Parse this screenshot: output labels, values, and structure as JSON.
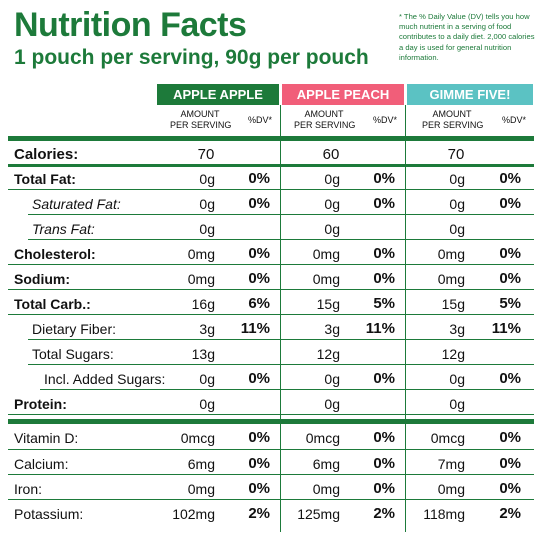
{
  "header": {
    "title": "Nutrition Facts",
    "subtitle": "1 pouch per serving, 90g per pouch",
    "footnote": "* The % Daily Value (DV) tells you how much nutrient in a serving of food contributes to a daily diet. 2,000 calories a day is used for general nutrition information."
  },
  "colors": {
    "green": "#1d7a3a",
    "pink": "#f15e79",
    "teal": "#5bc2c3"
  },
  "products": [
    {
      "name": "APPLE APPLE",
      "amount_header": "AMOUNT\nPER SERVING",
      "dv_header": "%DV*"
    },
    {
      "name": "APPLE PEACH",
      "amount_header": "AMOUNT\nPER SERVING",
      "dv_header": "%DV*"
    },
    {
      "name": "GIMME FIVE!",
      "amount_header": "AMOUNT\nPER SERVING",
      "dv_header": "%DV*"
    }
  ],
  "rows": {
    "calories": {
      "label": "Calories:",
      "v": [
        "70",
        "60",
        "70"
      ]
    },
    "total_fat": {
      "label": "Total Fat:",
      "v": [
        "0g",
        "0g",
        "0g"
      ],
      "dv": [
        "0%",
        "0%",
        "0%"
      ]
    },
    "sat_fat": {
      "label": "Saturated Fat:",
      "v": [
        "0g",
        "0g",
        "0g"
      ],
      "dv": [
        "0%",
        "0%",
        "0%"
      ]
    },
    "trans_fat": {
      "label": "Trans Fat:",
      "v": [
        "0g",
        "0g",
        "0g"
      ]
    },
    "cholesterol": {
      "label": "Cholesterol:",
      "v": [
        "0mg",
        "0mg",
        "0mg"
      ],
      "dv": [
        "0%",
        "0%",
        "0%"
      ]
    },
    "sodium": {
      "label": "Sodium:",
      "v": [
        "0mg",
        "0mg",
        "0mg"
      ],
      "dv": [
        "0%",
        "0%",
        "0%"
      ]
    },
    "total_carb": {
      "label": "Total Carb.:",
      "v": [
        "16g",
        "15g",
        "15g"
      ],
      "dv": [
        "6%",
        "5%",
        "5%"
      ]
    },
    "fiber": {
      "label": "Dietary Fiber:",
      "v": [
        "3g",
        "3g",
        "3g"
      ],
      "dv": [
        "11%",
        "11%",
        "11%"
      ]
    },
    "sugars": {
      "label": "Total Sugars:",
      "v": [
        "13g",
        "12g",
        "12g"
      ]
    },
    "added_sugars": {
      "label": "Incl. Added Sugars:",
      "v": [
        "0g",
        "0g",
        "0g"
      ],
      "dv": [
        "0%",
        "0%",
        "0%"
      ]
    },
    "protein": {
      "label": "Protein:",
      "v": [
        "0g",
        "0g",
        "0g"
      ]
    },
    "vitamin_d": {
      "label": "Vitamin D:",
      "v": [
        "0mcg",
        "0mcg",
        "0mcg"
      ],
      "dv": [
        "0%",
        "0%",
        "0%"
      ]
    },
    "calcium": {
      "label": "Calcium:",
      "v": [
        "6mg",
        "6mg",
        "7mg"
      ],
      "dv": [
        "0%",
        "0%",
        "0%"
      ]
    },
    "iron": {
      "label": "Iron:",
      "v": [
        "0mg",
        "0mg",
        "0mg"
      ],
      "dv": [
        "0%",
        "0%",
        "0%"
      ]
    },
    "potassium": {
      "label": "Potassium:",
      "v": [
        "102mg",
        "125mg",
        "118mg"
      ],
      "dv": [
        "2%",
        "2%",
        "2%"
      ]
    }
  }
}
